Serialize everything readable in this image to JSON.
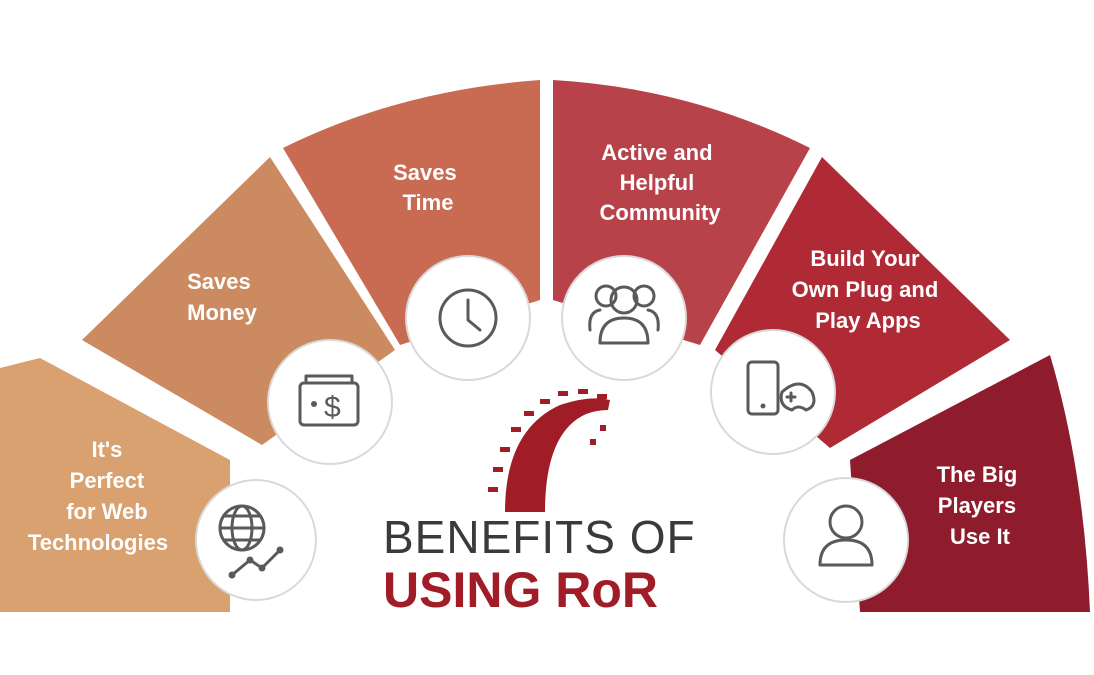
{
  "title": {
    "line1": "BENEFITS OF",
    "line2": "USING RoR"
  },
  "segments": [
    {
      "lines": [
        "It's",
        "Perfect",
        "for Web",
        "Technologies"
      ],
      "icon": "globe-chart-icon",
      "color": "#d9a070"
    },
    {
      "lines": [
        "Saves",
        "Money"
      ],
      "icon": "wallet-dollar-icon",
      "color": "#cc8a60"
    },
    {
      "lines": [
        "Saves",
        "Time"
      ],
      "icon": "clock-icon",
      "color": "#c96b52"
    },
    {
      "lines": [
        "Active and",
        "Helpful",
        "Community"
      ],
      "icon": "community-icon",
      "color": "#b8424a"
    },
    {
      "lines": [
        "Build Your",
        "Own Plug and",
        "Play Apps"
      ],
      "icon": "phone-gamepad-icon",
      "color": "#b02a36"
    },
    {
      "lines": [
        "The Big",
        "Players",
        "Use It"
      ],
      "icon": "user-icon",
      "color": "#8e1c2c"
    }
  ],
  "colors": {
    "title_dark": "#3a3a3a",
    "title_accent": "#a01c27",
    "logo": "#a01c27"
  }
}
